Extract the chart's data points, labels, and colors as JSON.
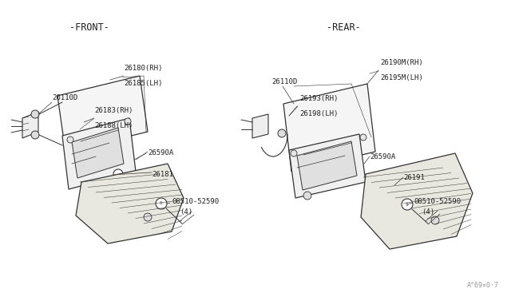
{
  "bg_color": "#ffffff",
  "line_color": "#333333",
  "text_color": "#222222",
  "front_label": "-FRONT-",
  "rear_label": "-REAR-",
  "watermark": "A°69×0·7",
  "font_size": 6.5,
  "title_font_size": 8.5
}
